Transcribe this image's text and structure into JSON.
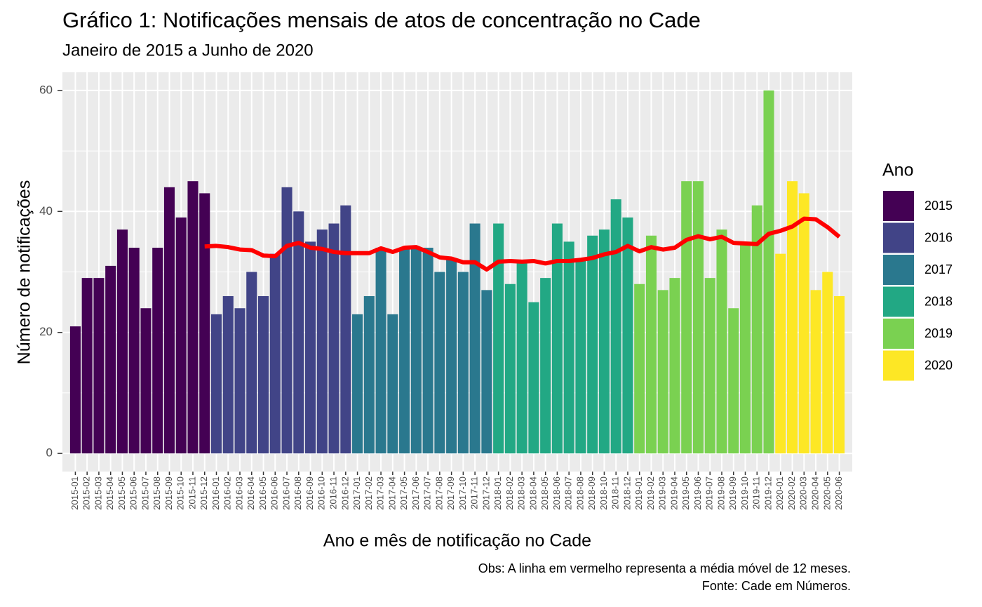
{
  "chart_data": {
    "type": "bar",
    "title": "Gráfico 1: Notificações mensais de atos de concentração no Cade",
    "subtitle": "Janeiro de 2015 a Junho de 2020",
    "x_label": "Ano e mês de notificação no Cade",
    "y_label": "Número de notificações",
    "notes": [
      "Obs: A linha em vermelho representa a média móvel de 12 meses.",
      "Fonte: Cade em Números."
    ],
    "categories": [
      "2015-01",
      "2015-02",
      "2015-03",
      "2015-04",
      "2015-05",
      "2015-06",
      "2015-07",
      "2015-08",
      "2015-09",
      "2015-10",
      "2015-11",
      "2015-12",
      "2016-01",
      "2016-02",
      "2016-03",
      "2016-04",
      "2016-05",
      "2016-06",
      "2016-07",
      "2016-08",
      "2016-09",
      "2016-10",
      "2016-11",
      "2016-12",
      "2017-01",
      "2017-02",
      "2017-03",
      "2017-04",
      "2017-05",
      "2017-06",
      "2017-07",
      "2017-08",
      "2017-09",
      "2017-10",
      "2017-11",
      "2017-12",
      "2018-01",
      "2018-02",
      "2018-03",
      "2018-04",
      "2018-05",
      "2018-06",
      "2018-07",
      "2018-08",
      "2018-09",
      "2018-10",
      "2018-11",
      "2018-12",
      "2019-01",
      "2019-02",
      "2019-03",
      "2019-04",
      "2019-05",
      "2019-06",
      "2019-07",
      "2019-08",
      "2019-09",
      "2019-10",
      "2019-11",
      "2019-12",
      "2020-01",
      "2020-02",
      "2020-03",
      "2020-04",
      "2020-05",
      "2020-06"
    ],
    "values": [
      21,
      29,
      29,
      31,
      37,
      34,
      24,
      34,
      44,
      39,
      45,
      43,
      23,
      26,
      24,
      30,
      26,
      33,
      44,
      40,
      35,
      37,
      38,
      41,
      23,
      26,
      34,
      23,
      34,
      34,
      34,
      30,
      32,
      30,
      38,
      27,
      38,
      28,
      32,
      25,
      29,
      38,
      35,
      32,
      36,
      37,
      42,
      39,
      28,
      36,
      27,
      29,
      45,
      45,
      29,
      37,
      24,
      35,
      41,
      60,
      33,
      45,
      43,
      27,
      30,
      26
    ],
    "line": {
      "color": "#ff0000",
      "values": [
        null,
        null,
        null,
        null,
        null,
        null,
        null,
        null,
        null,
        null,
        null,
        34.2,
        34.3,
        34.1,
        33.7,
        33.6,
        32.7,
        32.6,
        34.3,
        34.8,
        34.0,
        33.8,
        33.3,
        33.1,
        33.1,
        33.1,
        33.9,
        33.3,
        34.0,
        34.1,
        33.3,
        32.4,
        32.2,
        31.6,
        31.6,
        30.4,
        31.7,
        31.8,
        31.7,
        31.8,
        31.4,
        31.8,
        31.8,
        32.0,
        32.3,
        32.9,
        33.3,
        34.3,
        33.4,
        34.1,
        33.7,
        34.0,
        35.3,
        35.9,
        35.4,
        35.8,
        34.8,
        34.7,
        34.6,
        36.3,
        36.8,
        37.5,
        38.8,
        38.7,
        37.4,
        35.8
      ]
    },
    "legend": {
      "title": "Ano",
      "items": [
        {
          "name": "2015",
          "color": "#440154"
        },
        {
          "name": "2016",
          "color": "#414487"
        },
        {
          "name": "2017",
          "color": "#2a788e"
        },
        {
          "name": "2018",
          "color": "#22a884"
        },
        {
          "name": "2019",
          "color": "#7ad151"
        },
        {
          "name": "2020",
          "color": "#fde725"
        }
      ]
    },
    "ylim": [
      -3,
      63
    ],
    "yticks": [
      0,
      20,
      40,
      60
    ],
    "y_minor_grid": [
      10,
      30,
      50
    ],
    "grid": true
  }
}
